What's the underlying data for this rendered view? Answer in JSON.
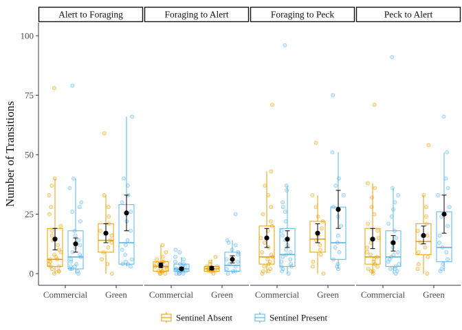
{
  "chart_data": {
    "type": "box",
    "ylabel": "Number of Transitions",
    "xlabel": "",
    "ylim": [
      0,
      100
    ],
    "yticks": [
      0,
      25,
      50,
      75,
      100
    ],
    "categories": [
      "Commercial",
      "Green"
    ],
    "grid": false,
    "legend_position": "bottom",
    "series": [
      {
        "name": "Sentinel Absent",
        "color": "#E69F00"
      },
      {
        "name": "Sentinel Present",
        "color": "#56B4E9"
      }
    ],
    "panels": [
      {
        "title": "Alert to Foraging",
        "groups": [
          {
            "category": "Commercial",
            "series": "Sentinel Absent",
            "box": {
              "min": 0,
              "q1": 3,
              "median": 6,
              "q3": 19,
              "max": 40
            },
            "mean": 14.5,
            "err": [
              10,
              19
            ],
            "points": [
              78,
              40,
              37,
              33,
              28,
              25,
              20,
              18,
              16,
              14,
              12,
              10,
              9,
              8,
              7,
              6,
              6,
              5,
              4,
              3,
              3,
              2,
              1,
              1,
              0
            ]
          },
          {
            "category": "Commercial",
            "series": "Sentinel Present",
            "box": {
              "min": 0,
              "q1": 2,
              "median": 7,
              "q3": 18,
              "max": 40
            },
            "mean": 12.5,
            "err": [
              9,
              15
            ],
            "points": [
              79,
              40,
              36,
              30,
              28,
              26,
              22,
              18,
              16,
              14,
              12,
              11,
              9,
              8,
              7,
              6,
              5,
              4,
              3,
              3,
              2,
              2,
              1,
              0
            ]
          },
          {
            "category": "Green",
            "series": "Sentinel Absent",
            "box": {
              "min": 0,
              "q1": 9,
              "median": 14,
              "q3": 21,
              "max": 33
            },
            "mean": 17,
            "err": [
              13,
              21
            ],
            "points": [
              59,
              33,
              28,
              24,
              21,
              18,
              16,
              14,
              13,
              11,
              9,
              6,
              4,
              0
            ]
          },
          {
            "category": "Green",
            "series": "Sentinel Present",
            "box": {
              "min": 3,
              "q1": 4,
              "median": 13,
              "q3": 29,
              "max": 66
            },
            "mean": 25.5,
            "err": [
              18,
              33
            ],
            "points": [
              66,
              40,
              37,
              33,
              30,
              26,
              22,
              18,
              14,
              12,
              10,
              8,
              6,
              5,
              4,
              4,
              3
            ]
          }
        ]
      },
      {
        "title": "Foraging to Alert",
        "groups": [
          {
            "category": "Commercial",
            "series": "Sentinel Absent",
            "box": {
              "min": 0,
              "q1": 1,
              "median": 3,
              "q3": 5,
              "max": 12
            },
            "mean": 3.5,
            "err": [
              2.5,
              4.5
            ],
            "points": [
              12,
              9,
              7,
              6,
              5,
              5,
              4,
              4,
              3,
              3,
              2,
              2,
              1,
              1,
              1,
              0,
              0,
              0
            ]
          },
          {
            "category": "Commercial",
            "series": "Sentinel Present",
            "box": {
              "min": 0,
              "q1": 1,
              "median": 2,
              "q3": 4,
              "max": 7
            },
            "mean": 2,
            "err": [
              1.5,
              2.7
            ],
            "points": [
              10,
              9,
              7,
              6,
              5,
              4,
              4,
              3,
              3,
              2,
              2,
              2,
              1,
              1,
              1,
              1,
              0,
              0,
              0,
              0
            ]
          },
          {
            "category": "Green",
            "series": "Sentinel Absent",
            "box": {
              "min": 0,
              "q1": 1,
              "median": 2,
              "q3": 3,
              "max": 6
            },
            "mean": 2.3,
            "err": [
              1.5,
              3
            ],
            "points": [
              7,
              5,
              4,
              3,
              3,
              2,
              2,
              2,
              1,
              1,
              1,
              0
            ]
          },
          {
            "category": "Green",
            "series": "Sentinel Present",
            "box": {
              "min": 0,
              "q1": 1,
              "median": 3.5,
              "q3": 9,
              "max": 14
            },
            "mean": 6,
            "err": [
              4.5,
              7.5
            ],
            "points": [
              25,
              14,
              13,
              12,
              10,
              9,
              8,
              6,
              5,
              4,
              3,
              2,
              1,
              1,
              0
            ]
          }
        ]
      },
      {
        "title": "Foraging to Peck",
        "groups": [
          {
            "category": "Commercial",
            "series": "Sentinel Absent",
            "box": {
              "min": 0,
              "q1": 4,
              "median": 7,
              "q3": 20,
              "max": 43
            },
            "mean": 15,
            "err": [
              11,
              19
            ],
            "points": [
              71,
              43,
              37,
              33,
              28,
              25,
              22,
              20,
              18,
              15,
              13,
              11,
              9,
              8,
              7,
              6,
              5,
              4,
              3,
              2,
              1,
              1,
              0
            ]
          },
          {
            "category": "Commercial",
            "series": "Sentinel Present",
            "box": {
              "min": 0,
              "q1": 3,
              "median": 8,
              "q3": 19,
              "max": 37
            },
            "mean": 14.5,
            "err": [
              11,
              18
            ],
            "points": [
              96,
              37,
              35,
              30,
              28,
              26,
              22,
              18,
              16,
              14,
              12,
              10,
              9,
              8,
              7,
              6,
              5,
              4,
              3,
              3,
              2,
              1,
              0
            ]
          },
          {
            "category": "Green",
            "series": "Sentinel Absent",
            "box": {
              "min": 0,
              "q1": 9,
              "median": 14.5,
              "q3": 22,
              "max": 33
            },
            "mean": 17,
            "err": [
              13,
              21
            ],
            "points": [
              55,
              33,
              28,
              24,
              22,
              19,
              16,
              14,
              12,
              10,
              8,
              5,
              3,
              0
            ]
          },
          {
            "category": "Green",
            "series": "Sentinel Present",
            "box": {
              "min": 2,
              "q1": 6,
              "median": 13,
              "q3": 28,
              "max": 51
            },
            "mean": 27,
            "err": [
              19,
              35
            ],
            "points": [
              75,
              51,
              40,
              37,
              33,
              28,
              24,
              20,
              16,
              13,
              11,
              9,
              6,
              4,
              3,
              2
            ]
          }
        ]
      },
      {
        "title": "Peck to Alert",
        "groups": [
          {
            "category": "Commercial",
            "series": "Sentinel Absent",
            "box": {
              "min": 0,
              "q1": 4,
              "median": 7,
              "q3": 19,
              "max": 38
            },
            "mean": 14.5,
            "err": [
              10.5,
              19
            ],
            "points": [
              71,
              38,
              36,
              32,
              28,
              25,
              21,
              18,
              15,
              13,
              11,
              9,
              8,
              7,
              6,
              5,
              4,
              3,
              2,
              1,
              1,
              0
            ]
          },
          {
            "category": "Commercial",
            "series": "Sentinel Present",
            "box": {
              "min": 0,
              "q1": 3,
              "median": 7,
              "q3": 18,
              "max": 36
            },
            "mean": 13,
            "err": [
              9.5,
              16
            ],
            "points": [
              91,
              36,
              33,
              30,
              27,
              24,
              21,
              18,
              15,
              13,
              11,
              9,
              8,
              7,
              6,
              5,
              4,
              3,
              2,
              2,
              1,
              0
            ]
          },
          {
            "category": "Green",
            "series": "Sentinel Absent",
            "box": {
              "min": 0,
              "q1": 8,
              "median": 13.5,
              "q3": 21,
              "max": 33
            },
            "mean": 16,
            "err": [
              12.5,
              20
            ],
            "points": [
              54,
              33,
              28,
              24,
              21,
              18,
              16,
              13,
              11,
              9,
              7,
              4,
              2,
              0
            ]
          },
          {
            "category": "Green",
            "series": "Sentinel Present",
            "box": {
              "min": 1,
              "q1": 5,
              "median": 11,
              "q3": 26,
              "max": 51
            },
            "mean": 25,
            "err": [
              17,
              33
            ],
            "points": [
              66,
              51,
              40,
              36,
              33,
              28,
              24,
              20,
              16,
              13,
              11,
              9,
              6,
              4,
              2,
              1
            ]
          }
        ]
      }
    ]
  }
}
